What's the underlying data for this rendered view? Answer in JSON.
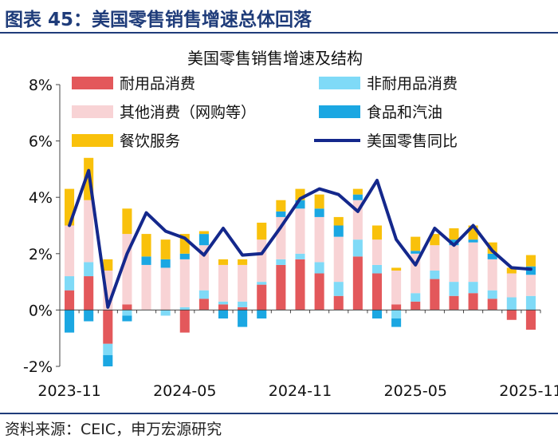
{
  "figure_title": "图表 45：美国零售销售增速总体回落",
  "source_note": "资料来源：CEIC，申万宏源研究",
  "colors": {
    "durable": "#e3585b",
    "nondurable": "#7fdaf7",
    "other": "#f8d3d5",
    "food_fuel": "#1ba7e2",
    "dining": "#f9c10b",
    "total": "#14288c",
    "header": "#1f3c7a"
  },
  "chart_data": {
    "type": "bar",
    "title": "美国零售销售增速及结构",
    "xlabel": "",
    "ylabel": "",
    "ylim": [
      -2,
      8
    ],
    "y_ticks": [
      "-2%",
      "0%",
      "2%",
      "4%",
      "6%",
      "8%"
    ],
    "x_tick_labels": [
      "2023-11",
      "2024-05",
      "2024-11",
      "2025-05",
      "2025-11"
    ],
    "grid": false,
    "legend_position": "top",
    "categories": [
      "2023-11",
      "2023-12",
      "2024-01",
      "2024-02",
      "2024-03",
      "2024-04",
      "2024-05",
      "2024-06",
      "2024-07",
      "2024-08",
      "2024-09",
      "2024-10",
      "2024-11",
      "2024-12",
      "2025-01",
      "2025-02",
      "2025-03",
      "2025-04",
      "2025-05",
      "2025-06",
      "2025-07",
      "2025-08",
      "2025-09",
      "2025-10",
      "2025-11"
    ],
    "series": [
      {
        "name": "耐用品消费",
        "stack": true,
        "values": [
          0.7,
          1.2,
          -1.2,
          0.2,
          0,
          0,
          -0.8,
          0.4,
          0.2,
          0.1,
          0.9,
          1.6,
          1.8,
          1.3,
          0.5,
          1.9,
          1.3,
          0.2,
          0.3,
          1.1,
          0.5,
          0.6,
          0.4,
          -0.35,
          -0.7
        ]
      },
      {
        "name": "非耐用品消费",
        "stack": true,
        "values": [
          0.5,
          0.5,
          -0.4,
          -0.2,
          0,
          -0.2,
          0.1,
          0.3,
          0.1,
          0.2,
          0.1,
          0.2,
          0.2,
          0.4,
          0.5,
          0.6,
          0.3,
          -0.3,
          0.3,
          0.3,
          0.5,
          0.4,
          0.3,
          0.45,
          0.5
        ]
      },
      {
        "name": "其他消费（网购等）",
        "stack": true,
        "values": [
          1.8,
          2.2,
          1.4,
          2.5,
          1.6,
          1.5,
          1.7,
          1.6,
          1.3,
          1.3,
          1.5,
          1.5,
          1.6,
          1.6,
          1.6,
          1.4,
          0.9,
          1.2,
          1.4,
          0.9,
          1.3,
          1.4,
          1.1,
          0.85,
          0.75
        ]
      },
      {
        "name": "食品和汽油",
        "stack": true,
        "values": [
          -0.8,
          -0.4,
          -0.4,
          -0.2,
          0.3,
          0.3,
          0.2,
          0.4,
          -0.3,
          -0.6,
          -0.3,
          0.2,
          0.3,
          0.3,
          0.4,
          0.2,
          -0.3,
          -0.3,
          0.1,
          0,
          0.2,
          0.1,
          0.2,
          0,
          0.3
        ]
      },
      {
        "name": "餐饮服务",
        "stack": true,
        "values": [
          1.3,
          1.5,
          0.4,
          0.9,
          0.8,
          0.7,
          0.7,
          0.1,
          0.2,
          0.2,
          0.6,
          0.4,
          0.4,
          0.5,
          0.3,
          0.2,
          0.5,
          0.1,
          0.5,
          0.4,
          0.4,
          0.5,
          0.4,
          0.2,
          0.4
        ]
      },
      {
        "name": "美国零售同比",
        "type": "line",
        "values": [
          3.0,
          4.95,
          0.1,
          2.0,
          3.45,
          2.8,
          2.55,
          1.95,
          2.9,
          1.95,
          2.0,
          2.95,
          3.95,
          4.3,
          4.1,
          3.5,
          4.6,
          2.5,
          1.6,
          2.9,
          2.3,
          3.0,
          2.1,
          1.5,
          1.45
        ]
      }
    ]
  }
}
